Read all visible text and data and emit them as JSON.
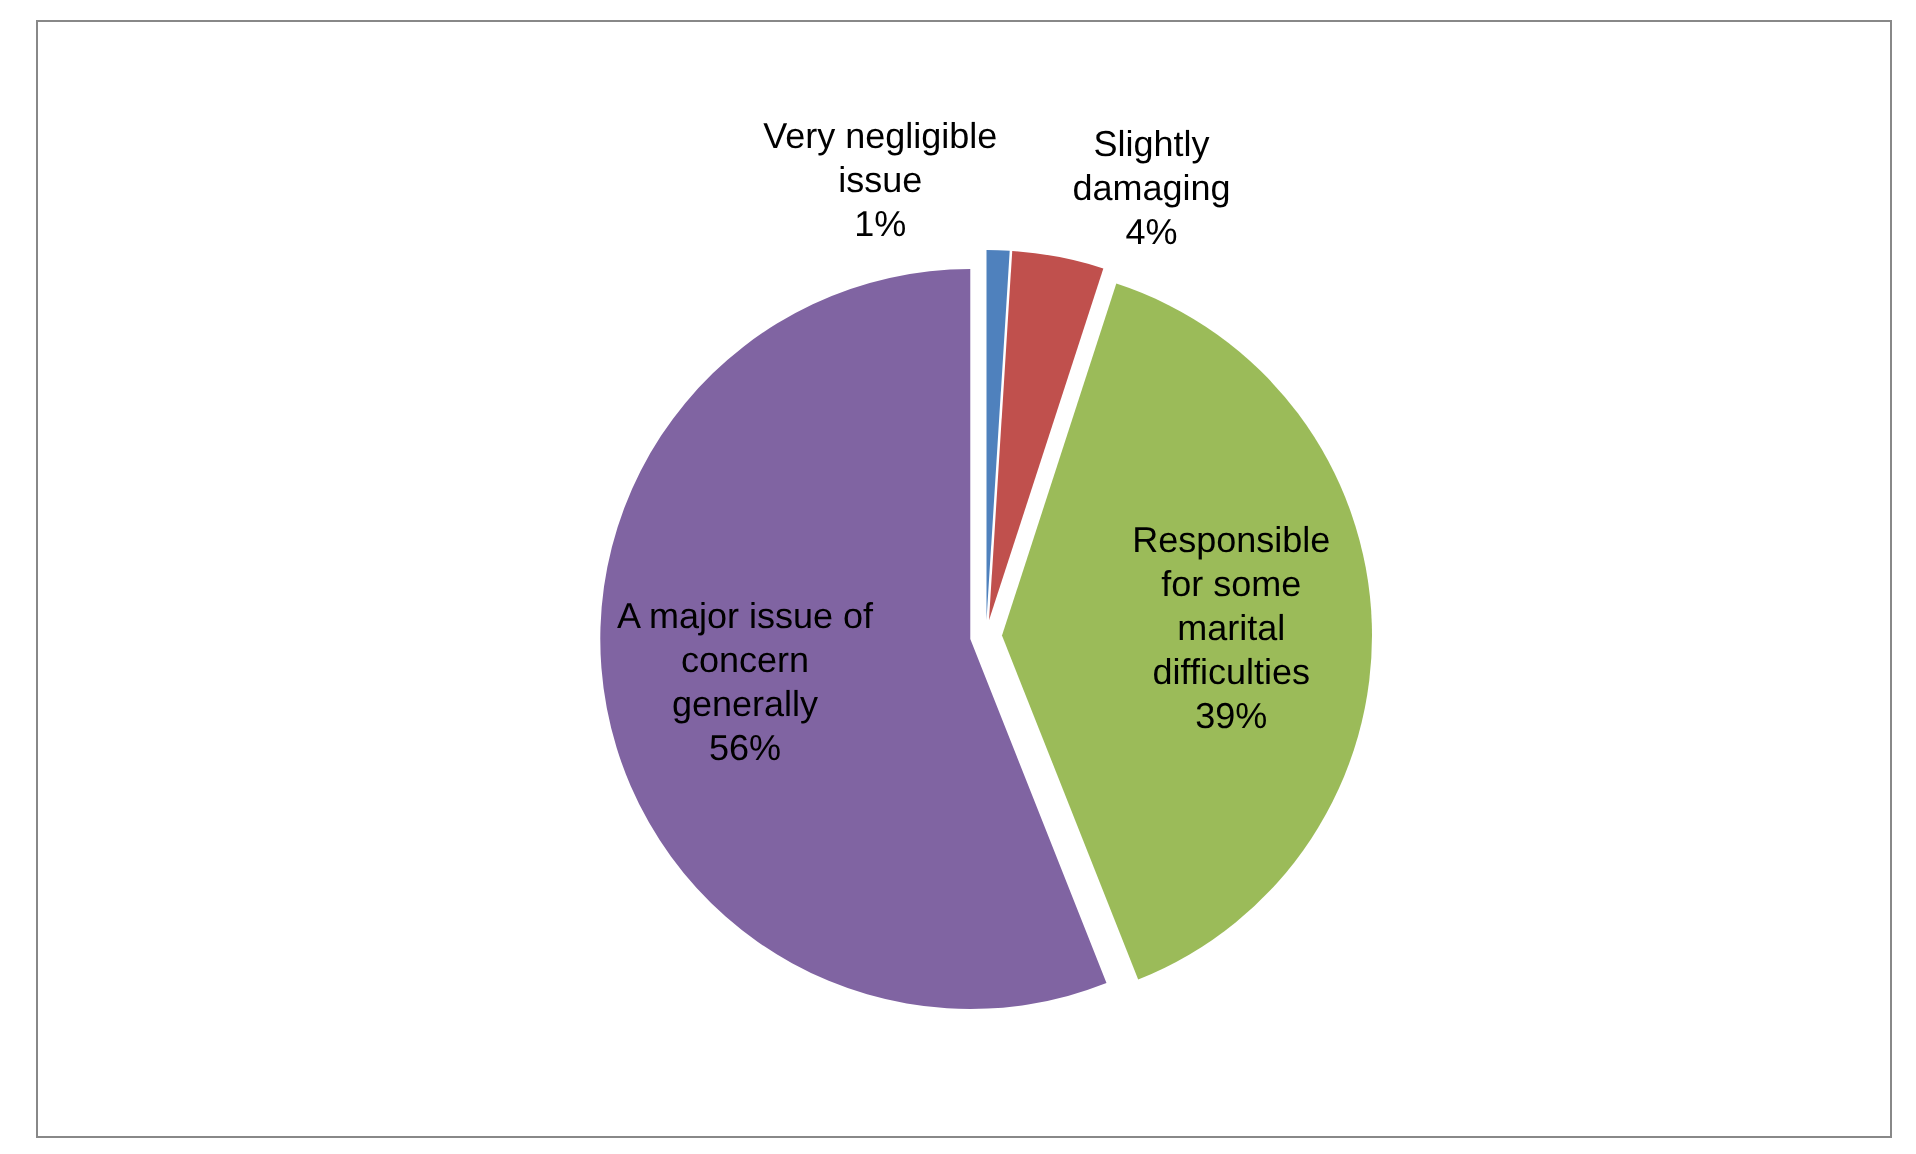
{
  "chart_data": {
    "type": "pie",
    "categories": [
      "Very negligible issue",
      "Slightly damaging",
      "Responsible for some marital difficulties",
      "A major issue of concern generally"
    ],
    "values": [
      1,
      4,
      39,
      56
    ],
    "value_labels": [
      "1%",
      "4%",
      "39%",
      "56%"
    ],
    "colors": [
      "#4f81bd",
      "#c0504d",
      "#9bbb59",
      "#8064a2"
    ]
  }
}
